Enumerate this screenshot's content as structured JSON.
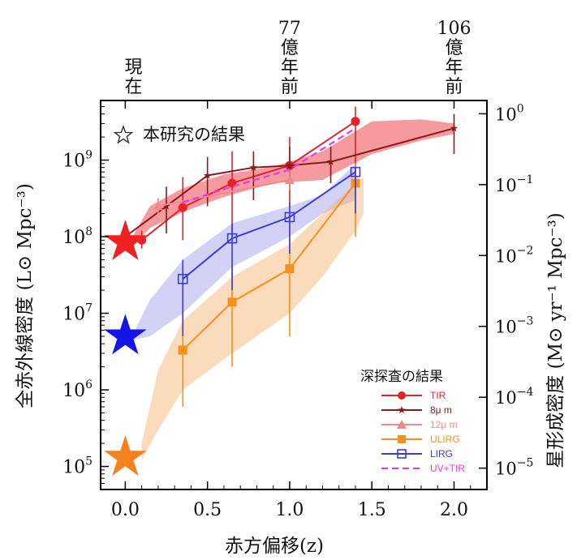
{
  "chart_data": {
    "type": "line",
    "xlabel": "赤方偏移(z)",
    "ylabel": "全赤外線密度 (L⊙ Mpc⁻³)",
    "ylabel_right": "星形成密度 (M⊙ yr⁻¹ Mpc⁻³)",
    "xlim": [
      -0.15,
      2.2
    ],
    "ylim": [
      50000,
      6000000000
    ],
    "yscale": "log",
    "x_ticks": [
      "0.0",
      "0.5",
      "1.0",
      "1.5",
      "2.0"
    ],
    "y_ticks": [
      {
        "base": "10",
        "exp": "5"
      },
      {
        "base": "10",
        "exp": "6"
      },
      {
        "base": "10",
        "exp": "7"
      },
      {
        "base": "10",
        "exp": "8"
      },
      {
        "base": "10",
        "exp": "9"
      }
    ],
    "y_right_ticks": [
      {
        "base": "10",
        "exp": "−5"
      },
      {
        "base": "10",
        "exp": "−4"
      },
      {
        "base": "10",
        "exp": "−3"
      },
      {
        "base": "10",
        "exp": "−2"
      },
      {
        "base": "10",
        "exp": "−1"
      },
      {
        "base": "10",
        "exp": "0"
      }
    ],
    "top_labels": [
      {
        "z": 0.05,
        "lines": [
          "現",
          "在"
        ]
      },
      {
        "z": 1.0,
        "lines": [
          "77",
          "億",
          "年",
          "前"
        ]
      },
      {
        "z": 2.0,
        "lines": [
          "106",
          "億",
          "年",
          "前"
        ]
      }
    ],
    "annotation": "本研究の結果",
    "legend_title": "深探査の結果",
    "legend_position": "bottom-right",
    "series": [
      {
        "name": "TIR",
        "color": "#e8202a",
        "marker": "circle",
        "x": [
          0.1,
          0.35,
          0.65,
          1.0,
          1.4
        ],
        "y": [
          90000000,
          240000000,
          500000000,
          850000000,
          3200000000
        ],
        "err_lo": [
          70000000,
          90000000,
          100000000,
          250000000,
          350000000
        ],
        "err_hi": [
          120000000,
          600000000,
          1300000000,
          2000000000,
          5000000000
        ]
      },
      {
        "name": "8μ m",
        "color": "#8b1a1a",
        "marker": "star-small",
        "x": [
          0.0,
          0.25,
          0.5,
          0.78,
          1.0,
          1.25,
          2.0
        ],
        "y": [
          100000000,
          250000000,
          630000000,
          800000000,
          850000000,
          950000000,
          2600000000
        ],
        "err_lo": [
          80000000,
          110000000,
          250000000,
          300000000,
          400000000,
          500000000,
          1200000000
        ],
        "err_hi": [
          130000000,
          450000000,
          1100000000,
          1300000000,
          1500000000,
          1500000000,
          4000000000
        ]
      },
      {
        "name": "12μ m",
        "color": "#f08a8a",
        "marker": "triangle",
        "x": [
          0.2,
          1.0
        ],
        "y": [
          250000000,
          550000000
        ],
        "err_lo": [
          200000000,
          400000000
        ],
        "err_hi": [
          320000000,
          750000000
        ]
      },
      {
        "name": "ULIRG",
        "color": "#f5901e",
        "marker": "square",
        "x": [
          0.35,
          0.65,
          1.0,
          1.4
        ],
        "y": [
          3300000,
          14000000,
          38000000,
          500000000
        ],
        "err_lo": [
          600000,
          2000000,
          5000000,
          100000000
        ],
        "err_hi": [
          20000000,
          60000000,
          200000000,
          900000000
        ]
      },
      {
        "name": "LIRG",
        "color": "#3a3adf",
        "marker": "square-open",
        "x": [
          0.35,
          0.65,
          1.0,
          1.4
        ],
        "y": [
          28000000,
          95000000,
          180000000,
          700000000
        ],
        "err_lo": [
          5000000,
          20000000,
          60000000,
          200000000
        ],
        "err_hi": [
          50000000,
          150000000,
          280000000,
          800000000
        ]
      },
      {
        "name": "UV+TIR",
        "color": "#ee33ee",
        "marker": "dashed",
        "x": [
          0.35,
          0.65,
          1.0,
          1.4
        ],
        "y": [
          280000000,
          450000000,
          750000000,
          2600000000
        ]
      }
    ],
    "bands": [
      {
        "color": "#e8202a",
        "opacity": 0.45,
        "x": [
          0.05,
          0.15,
          0.35,
          0.6,
          0.9,
          1.2,
          1.5,
          1.8,
          2.0
        ],
        "lo": [
          75000000,
          130000000,
          210000000,
          330000000,
          500000000,
          550000000,
          1200000000,
          1800000000,
          2200000000
        ],
        "hi": [
          105000000,
          250000000,
          430000000,
          650000000,
          820000000,
          1300000000,
          3200000000,
          3400000000,
          3000000000
        ]
      },
      {
        "color": "#7d7de8",
        "opacity": 0.35,
        "x": [
          0.05,
          0.15,
          0.35,
          0.65,
          1.0,
          1.2,
          1.4
        ],
        "lo": [
          4500000,
          5000000,
          10000000,
          40000000,
          100000000,
          200000000,
          300000000
        ],
        "hi": [
          5500000,
          15000000,
          50000000,
          150000000,
          250000000,
          350000000,
          900000000
        ]
      },
      {
        "color": "#f5b06a",
        "opacity": 0.45,
        "x": [
          0.1,
          0.2,
          0.35,
          0.65,
          1.0,
          1.2,
          1.4,
          1.45
        ],
        "lo": [
          120000,
          300000,
          1000000,
          3000000,
          10000000,
          30000000,
          120000000,
          200000000
        ],
        "hi": [
          200000,
          1800000,
          8000000,
          30000000,
          80000000,
          200000000,
          500000000,
          600000000
        ]
      }
    ],
    "this_work": [
      {
        "x": 0.0,
        "y": 85000000,
        "color": "#ee2222"
      },
      {
        "x": 0.0,
        "y": 5000000,
        "color": "#1414e6"
      },
      {
        "x": 0.0,
        "y": 130000,
        "color": "#f5821e"
      }
    ],
    "colors": {
      "frame": "#000000",
      "text": "#111111"
    }
  }
}
